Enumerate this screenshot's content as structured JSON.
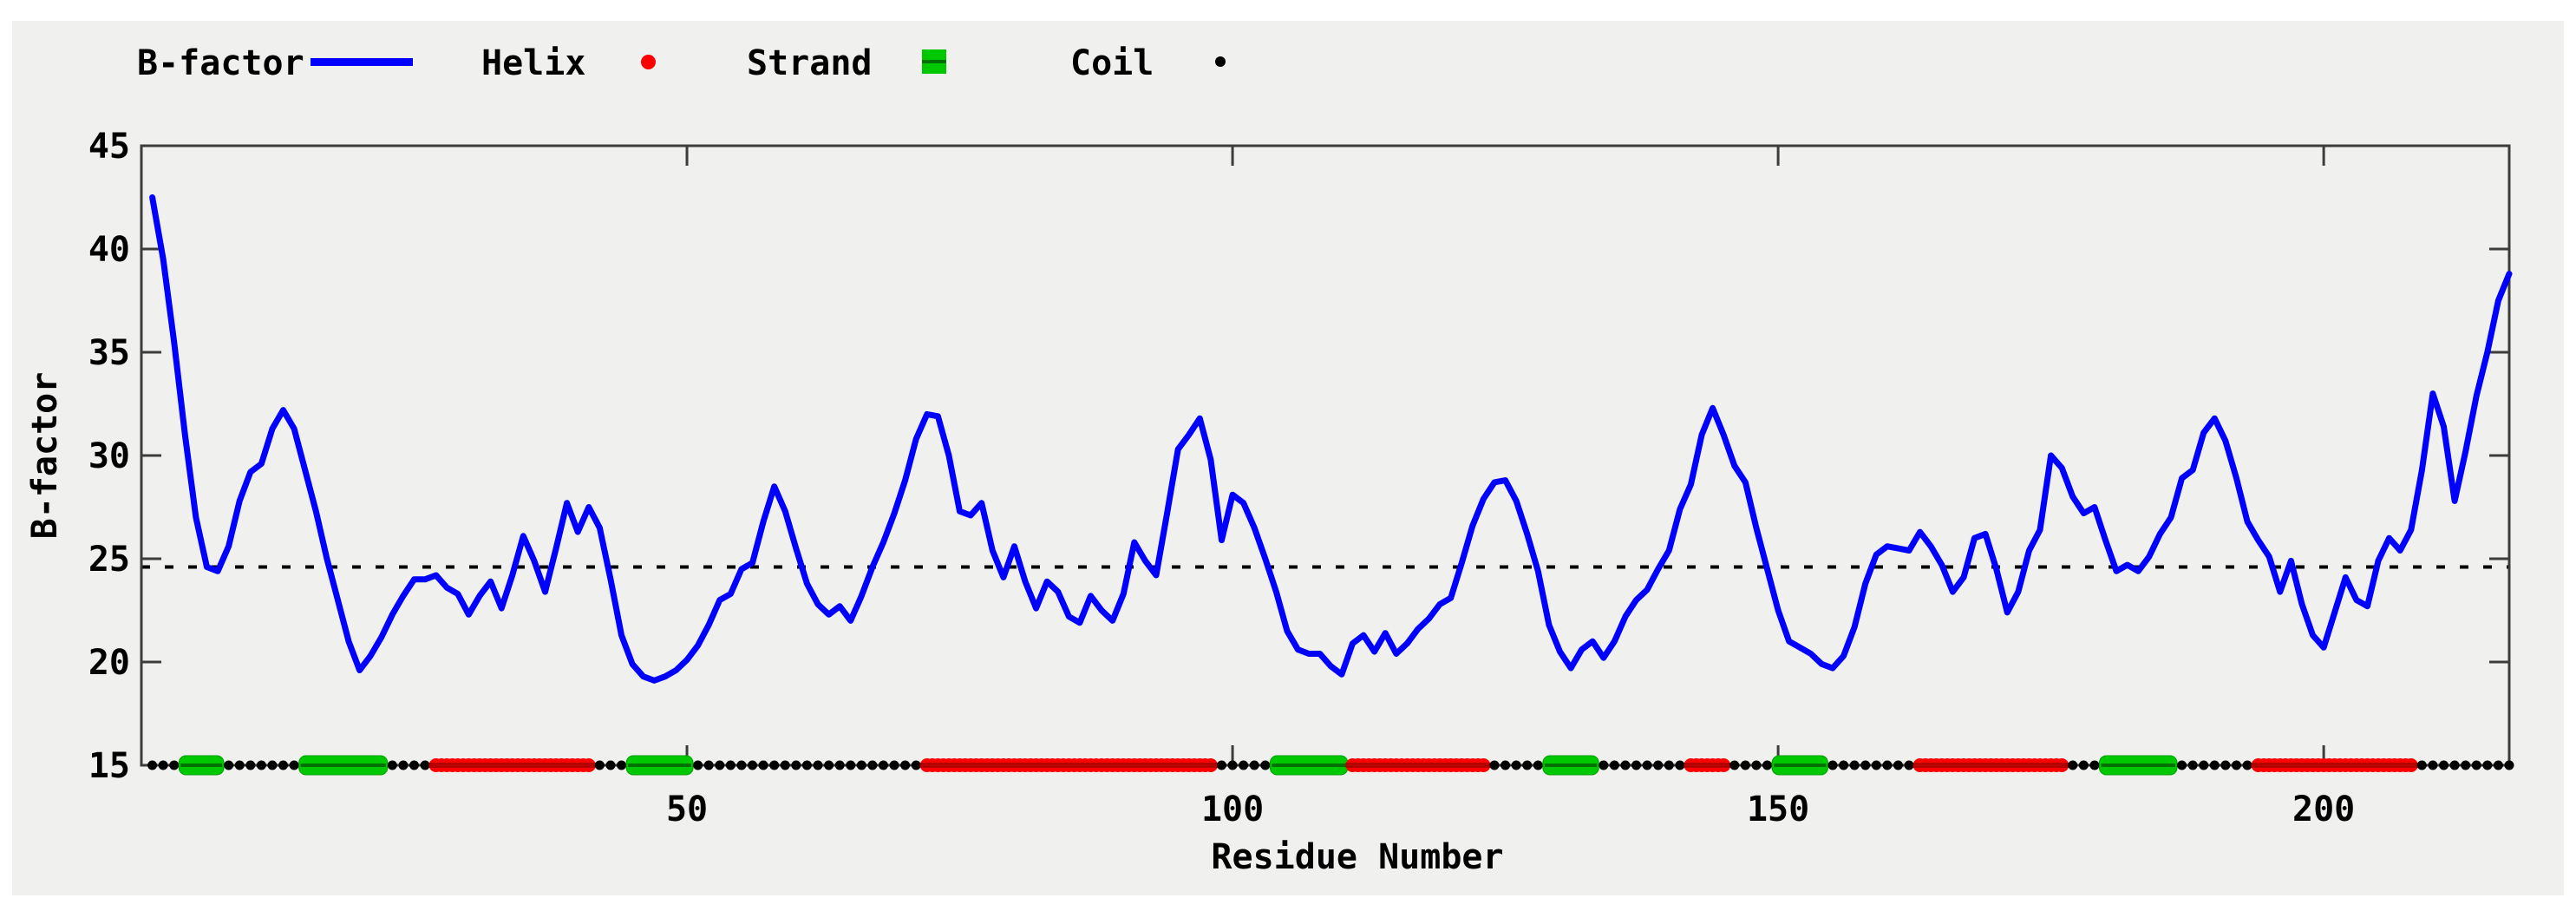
{
  "page": {
    "background": "#ffffff",
    "panel_background": "#f0f0ee"
  },
  "chart_data": {
    "type": "line",
    "title": "",
    "xlabel": "Residue Number",
    "ylabel": "B-factor",
    "x_ticks": [
      50,
      100,
      150,
      200
    ],
    "y_ticks": [
      15,
      20,
      25,
      30,
      35,
      40,
      45
    ],
    "xlim": [
      0,
      217
    ],
    "ylim": [
      15,
      45
    ],
    "grid": false,
    "legend_position": "top-left-horizontal",
    "average_bfactor_dashed_line": 24.6,
    "legend": [
      {
        "label": "B-factor",
        "marker": "line",
        "color": "#0000ff"
      },
      {
        "label": "Helix",
        "marker": "dot",
        "color": "#ff0000"
      },
      {
        "label": "Strand",
        "marker": "square",
        "color": "#00c800"
      },
      {
        "label": "Coil",
        "marker": "small-dot",
        "color": "#000000"
      }
    ],
    "series": [
      {
        "name": "B-factor",
        "color": "#0000ff",
        "x_start": 1,
        "x_step": 1,
        "values": [
          42.5,
          39.5,
          35.5,
          31.0,
          27.0,
          24.6,
          24.4,
          25.6,
          27.8,
          29.2,
          29.6,
          31.3,
          32.2,
          31.3,
          29.3,
          27.3,
          25.0,
          23.0,
          21.0,
          19.6,
          20.3,
          21.2,
          22.3,
          23.2,
          24.0,
          24.0,
          24.2,
          23.6,
          23.3,
          22.3,
          23.2,
          23.9,
          22.6,
          24.2,
          26.1,
          24.9,
          23.4,
          25.5,
          27.7,
          26.3,
          27.5,
          26.5,
          24.0,
          21.3,
          19.9,
          19.3,
          19.1,
          19.3,
          19.6,
          20.1,
          20.8,
          21.8,
          23.0,
          23.3,
          24.5,
          24.8,
          26.8,
          28.5,
          27.3,
          25.5,
          23.8,
          22.8,
          22.3,
          22.7,
          22.0,
          23.2,
          24.6,
          25.8,
          27.2,
          28.8,
          30.8,
          32.0,
          31.9,
          30.0,
          27.3,
          27.1,
          27.7,
          25.4,
          24.1,
          25.6,
          23.9,
          22.6,
          23.9,
          23.4,
          22.2,
          21.9,
          23.2,
          22.5,
          22.0,
          23.3,
          25.8,
          24.9,
          24.2,
          27.2,
          30.3,
          31.0,
          31.8,
          29.8,
          25.9,
          28.1,
          27.7,
          26.5,
          25.0,
          23.4,
          21.5,
          20.6,
          20.4,
          20.4,
          19.8,
          19.4,
          20.9,
          21.3,
          20.5,
          21.4,
          20.4,
          20.9,
          21.6,
          22.1,
          22.8,
          23.1,
          24.8,
          26.6,
          27.9,
          28.7,
          28.8,
          27.8,
          26.2,
          24.4,
          21.8,
          20.5,
          19.7,
          20.6,
          21.0,
          20.2,
          21.0,
          22.2,
          23.0,
          23.5,
          24.5,
          25.4,
          27.4,
          28.6,
          31.0,
          32.3,
          31.0,
          29.5,
          28.7,
          26.5,
          24.5,
          22.5,
          21.0,
          20.7,
          20.4,
          19.9,
          19.7,
          20.3,
          21.7,
          23.8,
          25.2,
          25.6,
          25.5,
          25.4,
          26.3,
          25.6,
          24.7,
          23.4,
          24.1,
          26.0,
          26.2,
          24.5,
          22.4,
          23.4,
          25.4,
          26.4,
          30.0,
          29.4,
          28.0,
          27.2,
          27.5,
          25.9,
          24.4,
          24.7,
          24.4,
          25.1,
          26.2,
          27.0,
          28.9,
          29.3,
          31.1,
          31.8,
          30.7,
          28.9,
          26.8,
          25.9,
          25.1,
          23.4,
          24.9,
          22.8,
          21.3,
          20.7,
          22.4,
          24.1,
          23.0,
          22.7,
          24.9,
          26.0,
          25.4,
          26.4,
          29.3,
          33.0,
          31.4,
          27.8,
          30.2,
          32.9,
          35.0,
          37.5,
          38.8
        ]
      }
    ],
    "secondary_structure": {
      "track_y_value": 15,
      "colors": {
        "helix": "#ff0000",
        "strand": "#00c800",
        "coil": "#000000"
      },
      "segments": [
        {
          "type": "coil",
          "start": 1,
          "end": 3
        },
        {
          "type": "strand",
          "start": 4,
          "end": 7
        },
        {
          "type": "coil",
          "start": 8,
          "end": 14
        },
        {
          "type": "strand",
          "start": 15,
          "end": 22
        },
        {
          "type": "coil",
          "start": 23,
          "end": 26
        },
        {
          "type": "helix",
          "start": 27,
          "end": 41
        },
        {
          "type": "coil",
          "start": 42,
          "end": 44
        },
        {
          "type": "strand",
          "start": 45,
          "end": 50
        },
        {
          "type": "coil",
          "start": 51,
          "end": 71
        },
        {
          "type": "helix",
          "start": 72,
          "end": 98
        },
        {
          "type": "coil",
          "start": 99,
          "end": 103
        },
        {
          "type": "strand",
          "start": 104,
          "end": 110
        },
        {
          "type": "helix",
          "start": 111,
          "end": 123
        },
        {
          "type": "coil",
          "start": 124,
          "end": 128
        },
        {
          "type": "strand",
          "start": 129,
          "end": 133
        },
        {
          "type": "coil",
          "start": 134,
          "end": 141
        },
        {
          "type": "helix",
          "start": 142,
          "end": 145
        },
        {
          "type": "coil",
          "start": 146,
          "end": 149
        },
        {
          "type": "strand",
          "start": 150,
          "end": 154
        },
        {
          "type": "coil",
          "start": 155,
          "end": 162
        },
        {
          "type": "helix",
          "start": 163,
          "end": 176
        },
        {
          "type": "coil",
          "start": 177,
          "end": 179
        },
        {
          "type": "strand",
          "start": 180,
          "end": 186
        },
        {
          "type": "coil",
          "start": 187,
          "end": 193
        },
        {
          "type": "helix",
          "start": 194,
          "end": 208
        },
        {
          "type": "coil",
          "start": 209,
          "end": 217
        }
      ]
    }
  }
}
